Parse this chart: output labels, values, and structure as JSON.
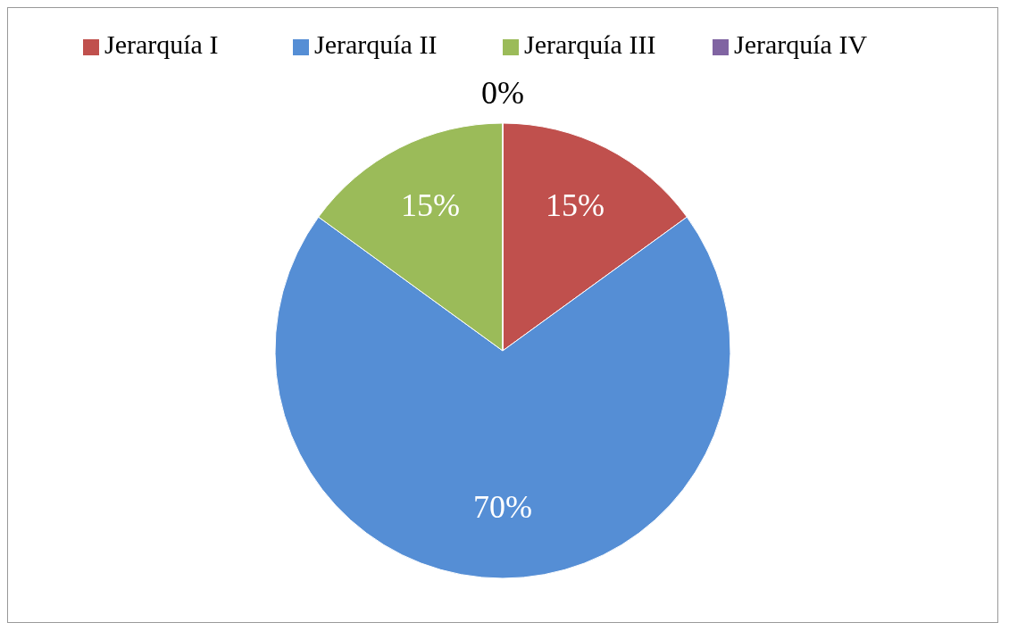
{
  "chart_data": {
    "type": "pie",
    "categories": [
      "Jerarquía I",
      "Jerarquía II",
      "Jerarquía III",
      "Jerarquía IV"
    ],
    "values": [
      15,
      70,
      15,
      0
    ],
    "colors": [
      "#c0504d",
      "#558ed5",
      "#9bbb59",
      "#8064a2"
    ],
    "value_labels": [
      "15%",
      "70%",
      "15%",
      "0%"
    ],
    "legend": "top"
  }
}
